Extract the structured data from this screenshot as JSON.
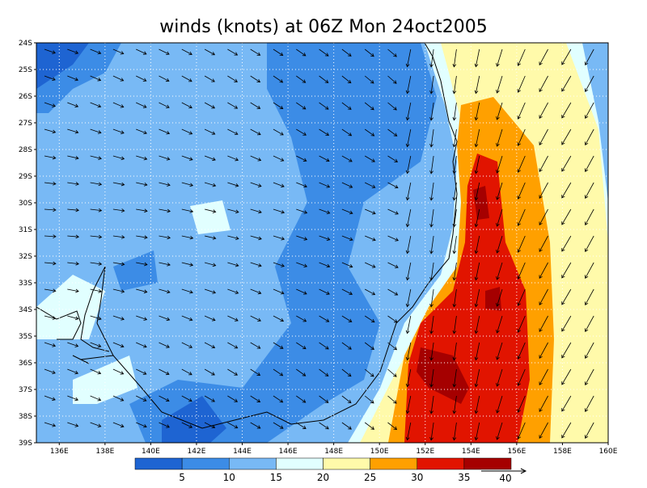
{
  "title": "winds (knots) at 06Z Mon 24oct2005",
  "map": {
    "lat_labels": [
      "24S",
      "25S",
      "26S",
      "27S",
      "28S",
      "29S",
      "30S",
      "31S",
      "32S",
      "33S",
      "34S",
      "35S",
      "36S",
      "37S",
      "38S",
      "39S"
    ],
    "lon_labels": [
      "136E",
      "138E",
      "140E",
      "142E",
      "144E",
      "146E",
      "148E",
      "150E",
      "152E",
      "154E",
      "156E",
      "158E",
      "160E"
    ]
  },
  "colorbar": {
    "levels": [
      5,
      10,
      15,
      20,
      25,
      30,
      35
    ],
    "colors": [
      "#1e64d2",
      "#3c8ce6",
      "#78b9f5",
      "#e1ffff",
      "#fffaaa",
      "#ffa000",
      "#e11400",
      "#a50000"
    ]
  },
  "reference_vector": {
    "label": "40"
  }
}
